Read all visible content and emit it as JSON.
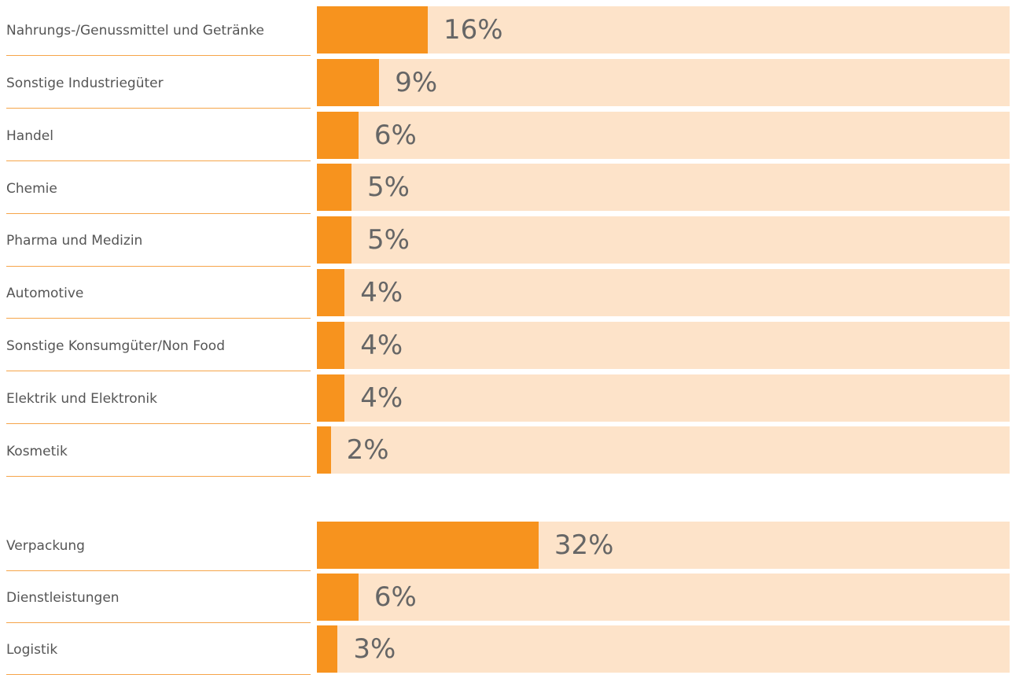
{
  "chart_data": {
    "type": "bar",
    "orientation": "horizontal",
    "groups": [
      {
        "categories": [
          "Nahrungs-/Genussmittel und Getränke",
          "Sonstige Industriegüter",
          "Handel",
          "Chemie",
          "Pharma und Medizin",
          "Automotive",
          "Sonstige Konsumgüter/Non Food",
          "Elektrik und Elektronik",
          "Kosmetik"
        ],
        "values": [
          16,
          9,
          6,
          5,
          5,
          4,
          4,
          4,
          2
        ],
        "value_labels": [
          "16%",
          "9%",
          "6%",
          "5%",
          "5%",
          "4%",
          "4%",
          "4%",
          "2%"
        ]
      },
      {
        "categories": [
          "Verpackung",
          "Dienstleistungen",
          "Logistik"
        ],
        "values": [
          32,
          6,
          3
        ],
        "value_labels": [
          "32%",
          "6%",
          "3%"
        ]
      }
    ],
    "xlim": [
      0,
      100
    ],
    "unit": "%",
    "grid": false,
    "colors": {
      "bar": "#f7931e",
      "track": "#fde3c9",
      "divider": "#f6a54a",
      "label_text": "#555555",
      "value_text": "#666666"
    }
  }
}
